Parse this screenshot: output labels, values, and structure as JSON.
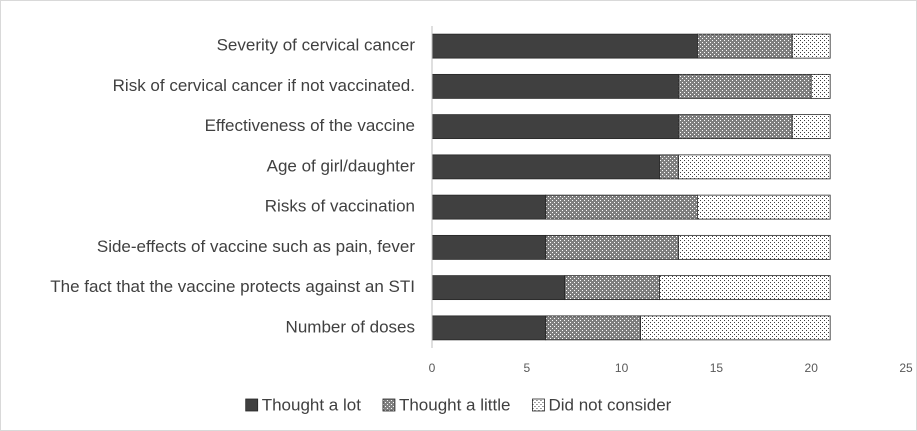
{
  "chart_data": {
    "type": "stacked-barh",
    "categories": [
      "Severity of cervical cancer",
      "Risk of cervical cancer if not vaccinated.",
      "Effectiveness of the vaccine",
      "Age of girl/daughter",
      "Risks of vaccination",
      "Side-effects of vaccine such as pain, fever",
      "The fact that the vaccine protects against an STI",
      "Number of doses"
    ],
    "series": [
      {
        "name": "Thought a lot",
        "color": "#404040",
        "pattern": "solid",
        "values": [
          14,
          13,
          13,
          12,
          6,
          6,
          7,
          6
        ]
      },
      {
        "name": "Thought a little",
        "color": "#7f7f7f",
        "pattern": "dense-dots",
        "values": [
          5,
          7,
          6,
          1,
          8,
          7,
          5,
          5
        ]
      },
      {
        "name": "Did not consider",
        "color": "#ffffff",
        "pattern": "sparse-dots",
        "values": [
          2,
          1,
          2,
          8,
          7,
          8,
          9,
          10
        ]
      }
    ],
    "xlim": [
      0,
      25
    ],
    "xticks": [
      0,
      5,
      10,
      15,
      20,
      25
    ],
    "grid": false,
    "legend": "bottom"
  }
}
